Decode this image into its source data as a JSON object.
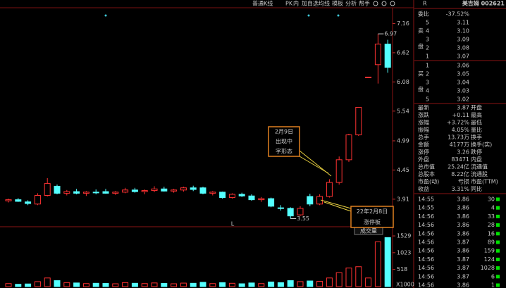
{
  "toolbar": [
    "普通K线",
    "PK",
    "内",
    "加自选",
    "均线",
    "模板",
    "分析",
    "帮手"
  ],
  "chart_data": {
    "type": "candlestick",
    "open": [
      3.88,
      3.9,
      3.86,
      3.82,
      3.98,
      4.15,
      4.02,
      4.05,
      4.02,
      4.04,
      4.05,
      4.02,
      4.04,
      4.08,
      4.05,
      4.07,
      4.1,
      4.06,
      4.08,
      4.12,
      4.12,
      4.02,
      4.04,
      3.94,
      4.0,
      3.97,
      3.9,
      3.92,
      3.75,
      3.74,
      3.62,
      3.96,
      3.82,
      3.96,
      4.22,
      4.64,
      5.1,
      6.17,
      6.4,
      6.78
    ],
    "high": [
      3.92,
      3.93,
      3.89,
      4.02,
      4.3,
      4.18,
      4.08,
      4.1,
      4.06,
      4.09,
      4.1,
      4.06,
      4.12,
      4.12,
      4.09,
      4.15,
      4.14,
      4.1,
      4.14,
      4.16,
      4.14,
      4.06,
      4.05,
      4.02,
      4.03,
      4.0,
      3.95,
      3.94,
      3.8,
      3.76,
      3.78,
      4.01,
      4.0,
      4.28,
      4.7,
      5.12,
      5.61,
      6.17,
      6.97,
      6.86
    ],
    "low": [
      3.85,
      3.86,
      3.8,
      3.8,
      3.96,
      4.0,
      3.98,
      4.0,
      3.97,
      4.0,
      4.01,
      3.99,
      4.02,
      4.03,
      4.0,
      4.04,
      4.05,
      4.03,
      4.05,
      4.06,
      4.0,
      3.98,
      3.92,
      3.92,
      3.95,
      3.88,
      3.86,
      3.76,
      3.7,
      3.55,
      3.6,
      3.78,
      3.8,
      3.94,
      4.18,
      4.6,
      5.08,
      6.17,
      6.05,
      6.25
    ],
    "close": [
      3.9,
      3.87,
      3.83,
      3.98,
      4.2,
      4.02,
      4.05,
      4.02,
      4.04,
      4.03,
      4.02,
      4.04,
      4.08,
      4.05,
      4.07,
      4.1,
      4.06,
      4.08,
      4.12,
      4.09,
      4.02,
      4.04,
      3.94,
      4.0,
      3.97,
      3.9,
      3.92,
      3.78,
      3.74,
      3.6,
      3.74,
      3.82,
      3.96,
      4.22,
      4.64,
      5.1,
      5.61,
      6.17,
      6.78,
      6.35
    ],
    "volume": [
      90,
      70,
      80,
      150,
      260,
      180,
      120,
      110,
      90,
      100,
      95,
      85,
      120,
      100,
      90,
      110,
      95,
      85,
      105,
      100,
      130,
      90,
      120,
      100,
      85,
      110,
      90,
      140,
      120,
      180,
      150,
      170,
      160,
      260,
      420,
      560,
      600,
      260,
      1350,
      1480
    ],
    "ylim": [
      3.4,
      7.44
    ],
    "yticks": [
      7.16,
      6.62,
      6.08,
      5.54,
      4.99,
      4.45,
      3.91
    ],
    "y2lim": [
      0,
      1700
    ],
    "y2ticks": [
      1529,
      1023,
      518
    ],
    "y2_unit_label": "X1000",
    "volume_label": "成交量",
    "high_label": 6.97,
    "low_label": 3.55,
    "cursor_label": "L",
    "annotations": [
      {
        "lines": [
          "2月9日",
          "出现中",
          "字形态"
        ]
      },
      {
        "lines": [
          "22年2月8日",
          "涨停板"
        ]
      }
    ],
    "colors": {
      "up": "#ff3232",
      "down": "#54ffff"
    }
  },
  "quote": {
    "header": "R",
    "name": "美吉姆 002621",
    "ratio_label": "委比",
    "ratio_value": "-37.52%",
    "sell_label": [
      "卖",
      "盘"
    ],
    "buy_label": [
      "买",
      "盘"
    ],
    "sell": [
      {
        "level": "5",
        "price": "3.11"
      },
      {
        "level": "4",
        "price": "3.10"
      },
      {
        "level": "3",
        "price": "3.09"
      },
      {
        "level": "2",
        "price": "3.08"
      },
      {
        "level": "1",
        "price": "3.07"
      }
    ],
    "buy": [
      {
        "level": "1",
        "price": "3.06"
      },
      {
        "level": "2",
        "price": "3.05"
      },
      {
        "level": "3",
        "price": "3.04"
      },
      {
        "level": "4",
        "price": "3.03"
      },
      {
        "level": "5",
        "price": "3.02"
      }
    ],
    "stats": [
      [
        "最新",
        "3.87",
        "开盘"
      ],
      [
        "涨跌",
        "+0.11",
        "最高"
      ],
      [
        "涨幅",
        "+3.72%",
        "最低"
      ],
      [
        "振幅",
        "4.05%",
        "量比"
      ],
      [
        "总手",
        "13.73万",
        "换手"
      ],
      [
        "金额",
        "4177万",
        "换手(实)"
      ],
      [
        "涨停",
        "3.26",
        "跌停"
      ],
      [
        "外盘",
        "83471",
        "内盘"
      ],
      [
        "总市值",
        "25.24亿",
        "流通值"
      ],
      [
        "总股本",
        "8.22亿",
        "流通股"
      ],
      [
        "市盈(动)",
        "亏损",
        "市盈(TTM)"
      ],
      [
        "收益",
        "3.31%",
        "同比"
      ]
    ],
    "trades": [
      [
        "14:55",
        "3.86",
        "30"
      ],
      [
        "14:55",
        "3.86",
        "4"
      ],
      [
        "14:56",
        "3.86",
        "33"
      ],
      [
        "14:56",
        "3.86",
        "28"
      ],
      [
        "14:56",
        "3.86",
        "16"
      ],
      [
        "14:56",
        "3.87",
        "89"
      ],
      [
        "14:56",
        "3.86",
        "159"
      ],
      [
        "14:56",
        "3.87",
        "124"
      ],
      [
        "14:56",
        "3.87",
        "1028"
      ],
      [
        "14:56",
        "3.87",
        "6"
      ],
      [
        "14:56",
        "3.86",
        "1"
      ]
    ]
  }
}
